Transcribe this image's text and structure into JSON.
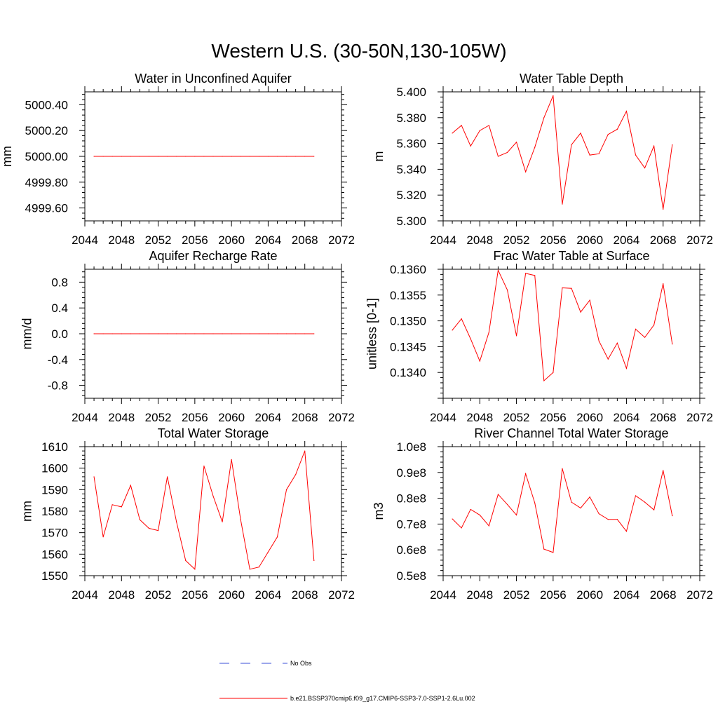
{
  "figure": {
    "title": "Western U.S. (30-50N,130-105W)"
  },
  "legend": {
    "items": [
      {
        "label": "No Obs",
        "color": "#3b4fd8",
        "style": "dashed"
      },
      {
        "label": "b.e21.BSSP370cmip6.f09_g17.CMIP6-SSP3-7.0-SSP1-2.6Lu.002",
        "color": "#ff0000",
        "style": "solid"
      }
    ]
  },
  "chart_data": [
    {
      "type": "line",
      "title": "Water in Unconfined Aquifer",
      "ylabel": "mm",
      "xlim": [
        2044,
        2072
      ],
      "x_ticks": [
        "2044",
        "2048",
        "2052",
        "2056",
        "2060",
        "2064",
        "2068",
        "2072"
      ],
      "ylim": [
        4999.5,
        5000.5
      ],
      "y_ticks": [
        "4999.60",
        "4999.80",
        "5000.00",
        "5000.20",
        "5000.40"
      ],
      "x": [
        2045,
        2046,
        2047,
        2048,
        2049,
        2050,
        2051,
        2052,
        2053,
        2054,
        2055,
        2056,
        2057,
        2058,
        2059,
        2060,
        2061,
        2062,
        2063,
        2064,
        2065,
        2066,
        2067,
        2068,
        2069
      ],
      "series": [
        {
          "color": "#ff0000",
          "values": [
            5000.0,
            5000.0,
            5000.0,
            5000.0,
            5000.0,
            5000.0,
            5000.0,
            5000.0,
            5000.0,
            5000.0,
            5000.0,
            5000.0,
            5000.0,
            5000.0,
            5000.0,
            5000.0,
            5000.0,
            5000.0,
            5000.0,
            5000.0,
            5000.0,
            5000.0,
            5000.0,
            5000.0,
            5000.0
          ]
        }
      ]
    },
    {
      "type": "line",
      "title": "Water Table Depth",
      "ylabel": "m",
      "xlim": [
        2044,
        2072
      ],
      "x_ticks": [
        "2044",
        "2048",
        "2052",
        "2056",
        "2060",
        "2064",
        "2068",
        "2072"
      ],
      "ylim": [
        5.3,
        5.4
      ],
      "y_ticks": [
        "5.300",
        "5.320",
        "5.340",
        "5.360",
        "5.380",
        "5.400"
      ],
      "x": [
        2045,
        2046,
        2047,
        2048,
        2049,
        2050,
        2051,
        2052,
        2053,
        2054,
        2055,
        2056,
        2057,
        2058,
        2059,
        2060,
        2061,
        2062,
        2063,
        2064,
        2065,
        2066,
        2067,
        2068,
        2069
      ],
      "series": [
        {
          "color": "#ff0000",
          "values": [
            5.368,
            5.374,
            5.358,
            5.37,
            5.374,
            5.35,
            5.353,
            5.361,
            5.338,
            5.357,
            5.38,
            5.397,
            5.313,
            5.359,
            5.368,
            5.351,
            5.352,
            5.367,
            5.371,
            5.385,
            5.351,
            5.341,
            5.358,
            5.309,
            5.359
          ]
        }
      ]
    },
    {
      "type": "line",
      "title": "Aquifer Recharge Rate",
      "ylabel": "mm/d",
      "xlim": [
        2044,
        2072
      ],
      "x_ticks": [
        "2044",
        "2048",
        "2052",
        "2056",
        "2060",
        "2064",
        "2068",
        "2072"
      ],
      "ylim": [
        -1.0,
        1.0
      ],
      "y_ticks": [
        "-0.8",
        "-0.4",
        "0.0",
        "0.4",
        "0.8"
      ],
      "x": [
        2045,
        2046,
        2047,
        2048,
        2049,
        2050,
        2051,
        2052,
        2053,
        2054,
        2055,
        2056,
        2057,
        2058,
        2059,
        2060,
        2061,
        2062,
        2063,
        2064,
        2065,
        2066,
        2067,
        2068,
        2069
      ],
      "series": [
        {
          "color": "#ff0000",
          "values": [
            0.0,
            0.0,
            0.0,
            0.0,
            0.0,
            0.0,
            0.0,
            0.0,
            0.0,
            0.0,
            0.0,
            0.0,
            0.0,
            0.0,
            0.0,
            0.0,
            0.0,
            0.0,
            0.0,
            0.0,
            0.0,
            0.0,
            0.0,
            0.0,
            0.0
          ]
        }
      ]
    },
    {
      "type": "line",
      "title": "Frac Water Table at Surface",
      "ylabel": "unitless [0-1]",
      "xlim": [
        2044,
        2072
      ],
      "x_ticks": [
        "2044",
        "2048",
        "2052",
        "2056",
        "2060",
        "2064",
        "2068",
        "2072"
      ],
      "ylim": [
        0.1335,
        0.136
      ],
      "y_ticks": [
        "0.1340",
        "0.1345",
        "0.1350",
        "0.1355",
        "0.1360"
      ],
      "x": [
        2045,
        2046,
        2047,
        2048,
        2049,
        2050,
        2051,
        2052,
        2053,
        2054,
        2055,
        2056,
        2057,
        2058,
        2059,
        2060,
        2061,
        2062,
        2063,
        2064,
        2065,
        2066,
        2067,
        2068,
        2069
      ],
      "series": [
        {
          "color": "#ff0000",
          "values": [
            0.13482,
            0.13504,
            0.13465,
            0.13422,
            0.13478,
            0.13598,
            0.1356,
            0.13471,
            0.13592,
            0.13588,
            0.13384,
            0.134,
            0.13564,
            0.13563,
            0.13517,
            0.1354,
            0.13461,
            0.13426,
            0.13457,
            0.13408,
            0.13484,
            0.13468,
            0.13492,
            0.13572,
            0.13455
          ]
        }
      ]
    },
    {
      "type": "line",
      "title": "Total Water Storage",
      "ylabel": "mm",
      "xlim": [
        2044,
        2072
      ],
      "x_ticks": [
        "2044",
        "2048",
        "2052",
        "2056",
        "2060",
        "2064",
        "2068",
        "2072"
      ],
      "ylim": [
        1550,
        1610
      ],
      "y_ticks": [
        "1550",
        "1560",
        "1570",
        "1580",
        "1590",
        "1600",
        "1610"
      ],
      "x": [
        2045,
        2046,
        2047,
        2048,
        2049,
        2050,
        2051,
        2052,
        2053,
        2054,
        2055,
        2056,
        2057,
        2058,
        2059,
        2060,
        2061,
        2062,
        2063,
        2064,
        2065,
        2066,
        2067,
        2068,
        2069
      ],
      "series": [
        {
          "color": "#ff0000",
          "values": [
            1596,
            1568,
            1583,
            1582,
            1592,
            1576,
            1572,
            1571,
            1596,
            1575,
            1557,
            1553,
            1601,
            1587,
            1575,
            1604,
            1576,
            1553,
            1554,
            1561,
            1568,
            1590,
            1597,
            1608,
            1557
          ]
        }
      ]
    },
    {
      "type": "line",
      "title": "River Channel Total Water Storage",
      "ylabel": "m3",
      "xlim": [
        2044,
        2072
      ],
      "x_ticks": [
        "2044",
        "2048",
        "2052",
        "2056",
        "2060",
        "2064",
        "2068",
        "2072"
      ],
      "ylim": [
        50000000,
        100000000
      ],
      "y_ticks": [
        "0.5e8",
        "0.6e8",
        "0.7e8",
        "0.8e8",
        "0.9e8",
        "1.0e8"
      ],
      "x": [
        2045,
        2046,
        2047,
        2048,
        2049,
        2050,
        2051,
        2052,
        2053,
        2054,
        2055,
        2056,
        2057,
        2058,
        2059,
        2060,
        2061,
        2062,
        2063,
        2064,
        2065,
        2066,
        2067,
        2068,
        2069
      ],
      "series": [
        {
          "color": "#ff0000",
          "values": [
            72000000,
            68500000,
            75700000,
            73500000,
            69300000,
            81500000,
            77600000,
            73500000,
            89500000,
            78200000,
            60300000,
            59000000,
            91500000,
            78500000,
            76200000,
            80500000,
            74000000,
            71800000,
            71800000,
            67200000,
            81000000,
            78500000,
            75500000,
            90800000,
            73200000
          ]
        }
      ]
    }
  ]
}
